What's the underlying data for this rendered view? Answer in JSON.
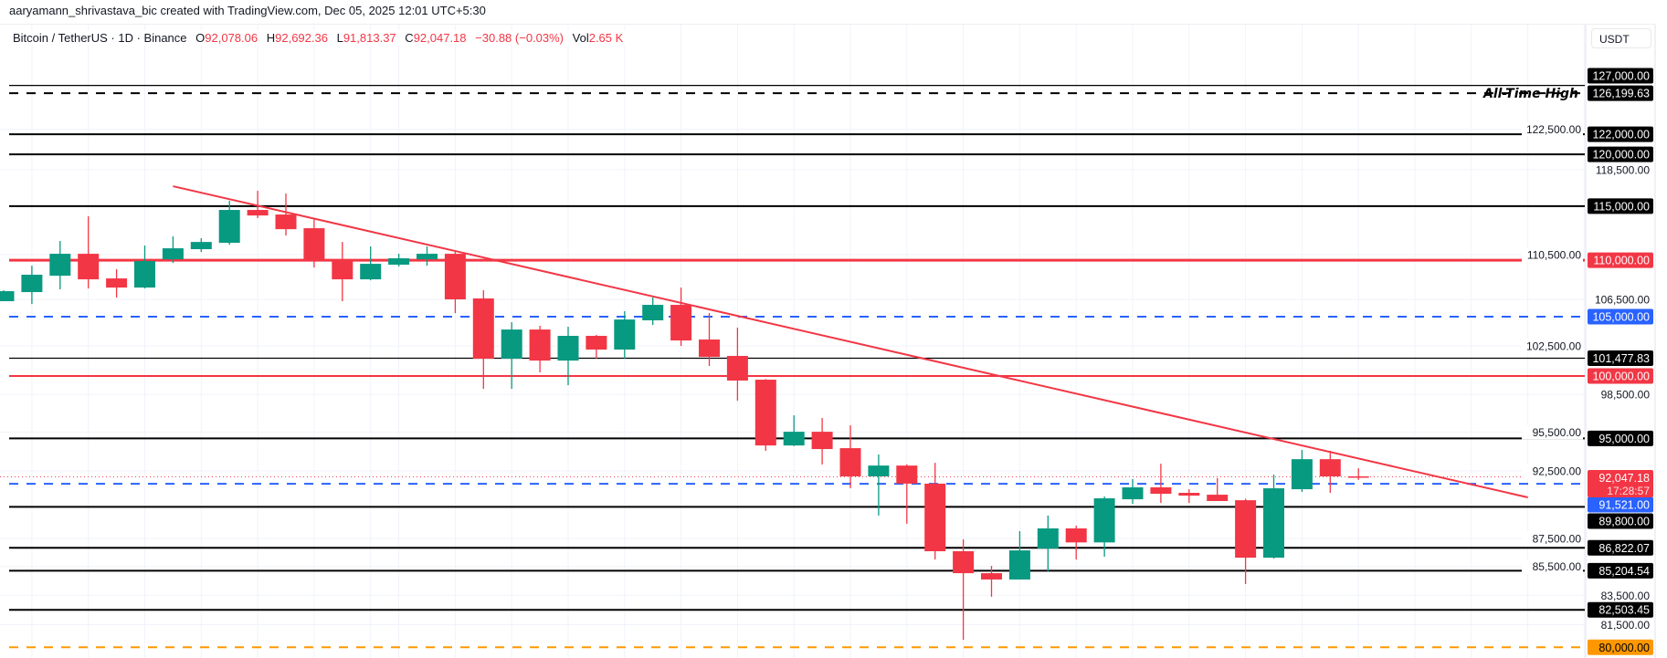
{
  "header": {
    "attribution": "aaryamann_shrivastava_bic created with TradingView.com, Dec 05, 2025 12:01 UTC+5:30",
    "symbol": "Bitcoin / TetherUS · 1D · Binance",
    "o_label": "O",
    "o": "92,078.06",
    "h_label": "H",
    "h": "92,692.36",
    "l_label": "L",
    "l": "91,813.37",
    "c_label": "C",
    "c": "92,047.18",
    "change": "−30.88 (−0.03%)",
    "vol_label": "Vol",
    "vol": "2.65 K"
  },
  "axis": {
    "currency": "USDT"
  },
  "chart_data": {
    "type": "candlestick",
    "scale": "log",
    "ylim": [
      79300,
      136250
    ],
    "grid": true,
    "colors": {
      "up": "#089981",
      "down": "#F23645",
      "blue": "#2962FF",
      "orange": "#FF9800",
      "black": "#000000",
      "tick_text": "#131722",
      "grid": "#f0f3fa"
    },
    "candles": [
      [
        106350,
        107310,
        106350,
        107230
      ],
      [
        107150,
        109500,
        106100,
        108690
      ],
      [
        108600,
        111750,
        107390,
        110580
      ],
      [
        110580,
        114040,
        107470,
        108280
      ],
      [
        108360,
        109180,
        106660,
        107550
      ],
      [
        107550,
        111330,
        107470,
        109920
      ],
      [
        110080,
        112170,
        109750,
        111080
      ],
      [
        111000,
        112000,
        110750,
        111660
      ],
      [
        111580,
        115500,
        111410,
        114640
      ],
      [
        114640,
        116460,
        113870,
        114120
      ],
      [
        114210,
        116200,
        112250,
        112840
      ],
      [
        112930,
        113780,
        109340,
        110000
      ],
      [
        110080,
        111660,
        106350,
        108280
      ],
      [
        108280,
        111250,
        108200,
        109670
      ],
      [
        109590,
        110580,
        109420,
        110170
      ],
      [
        110080,
        111250,
        109500,
        110580
      ],
      [
        110580,
        110750,
        105310,
        106510
      ],
      [
        106590,
        107310,
        98950,
        101440
      ],
      [
        101440,
        104530,
        98950,
        103900
      ],
      [
        103900,
        104220,
        100300,
        101280
      ],
      [
        101280,
        104140,
        99250,
        103360
      ],
      [
        103360,
        103440,
        101440,
        102200
      ],
      [
        102200,
        105480,
        101440,
        104760
      ],
      [
        104690,
        106670,
        104290,
        106030
      ],
      [
        106030,
        107550,
        102510,
        102970
      ],
      [
        103050,
        105320,
        100830,
        101590
      ],
      [
        101670,
        104060,
        97990,
        99630
      ],
      [
        99700,
        99750,
        94030,
        94450
      ],
      [
        94450,
        96820,
        94400,
        95520
      ],
      [
        95520,
        96610,
        92980,
        94170
      ],
      [
        94240,
        96030,
        91180,
        92080
      ],
      [
        92080,
        93750,
        89160,
        92900
      ],
      [
        92900,
        93000,
        88560,
        91530
      ],
      [
        91530,
        93110,
        85990,
        86580
      ],
      [
        86580,
        87430,
        80500,
        85030
      ],
      [
        85030,
        85540,
        83400,
        84590
      ],
      [
        84590,
        88020,
        84590,
        86640
      ],
      [
        86770,
        89160,
        85160,
        88220
      ],
      [
        88220,
        88420,
        85990,
        87210
      ],
      [
        87210,
        90570,
        86190,
        90430
      ],
      [
        90360,
        91880,
        90020,
        91250
      ],
      [
        91250,
        93040,
        90090,
        90770
      ],
      [
        90840,
        91110,
        90090,
        90630
      ],
      [
        90700,
        91950,
        90230,
        90230
      ],
      [
        90290,
        90400,
        84270,
        86120
      ],
      [
        86120,
        92210,
        86060,
        91180
      ],
      [
        91110,
        94100,
        90910,
        93390
      ],
      [
        93390,
        94030,
        90840,
        92078.06
      ],
      [
        92078.06,
        92692.36,
        91813.37,
        92047.18
      ]
    ],
    "levels": [
      {
        "price": 127000,
        "label": "127,000.00",
        "color": "#000000",
        "style": "solid-thin"
      },
      {
        "price": 126199.63,
        "label": "126,199.63",
        "color": "#000000",
        "style": "dashed",
        "text": "All-Time High"
      },
      {
        "price": 122000,
        "label": "122,000.00",
        "color": "#000000",
        "style": "solid"
      },
      {
        "price": 120000,
        "label": "120,000.00",
        "color": "#000000",
        "style": "solid"
      },
      {
        "price": 115000,
        "label": "115,000.00",
        "color": "#000000",
        "style": "solid"
      },
      {
        "price": 110000,
        "label": "110,000.00",
        "color": "#F23645",
        "style": "solid-thick"
      },
      {
        "price": 105000,
        "label": "105,000.00",
        "color": "#2962FF",
        "style": "dashed"
      },
      {
        "price": 101477.83,
        "label": "101,477.83",
        "color": "#000000",
        "style": "solid-thin"
      },
      {
        "price": 100000,
        "label": "100,000.00",
        "color": "#F23645",
        "style": "solid"
      },
      {
        "price": 95000,
        "label": "95,000.00",
        "color": "#000000",
        "style": "solid"
      },
      {
        "price": 91521,
        "label": "91,521.00",
        "color": "#2962FF",
        "style": "dashed"
      },
      {
        "price": 89800,
        "label": "89,800.00",
        "color": "#000000",
        "style": "solid"
      },
      {
        "price": 86822.07,
        "label": "86,822.07",
        "color": "#000000",
        "style": "solid"
      },
      {
        "price": 85204.54,
        "label": "85,204.54",
        "color": "#000000",
        "style": "solid"
      },
      {
        "price": 82503.45,
        "label": "82,503.45",
        "color": "#000000",
        "style": "solid"
      },
      {
        "price": 80000,
        "label": "80,000.00",
        "color": "#FF9800",
        "style": "dashed"
      }
    ],
    "tick_labels": [
      {
        "price": 122500,
        "label": "122,500.00"
      },
      {
        "price": 118500,
        "label": "118,500.00"
      },
      {
        "price": 110500,
        "label": "110,500.00"
      },
      {
        "price": 106500,
        "label": "106,500.00"
      },
      {
        "price": 102500,
        "label": "102,500.00"
      },
      {
        "price": 98500,
        "label": "98,500.00"
      },
      {
        "price": 95500,
        "label": "95,500.00"
      },
      {
        "price": 92500,
        "label": "92,500.00"
      },
      {
        "price": 87500,
        "label": "87,500.00"
      },
      {
        "price": 85500,
        "label": "85,500.00"
      },
      {
        "price": 83500,
        "label": "83,500.00"
      },
      {
        "price": 81500,
        "label": "81,500.00"
      }
    ],
    "trendline": {
      "from": {
        "bar": 6,
        "price": 116900
      },
      "to": {
        "bar": 54,
        "price": 90500
      },
      "color": "#F23645"
    },
    "current_price": {
      "price": 92047.18,
      "label": "92,047.18",
      "countdown": "17:28:57",
      "color": "#F23645"
    }
  }
}
